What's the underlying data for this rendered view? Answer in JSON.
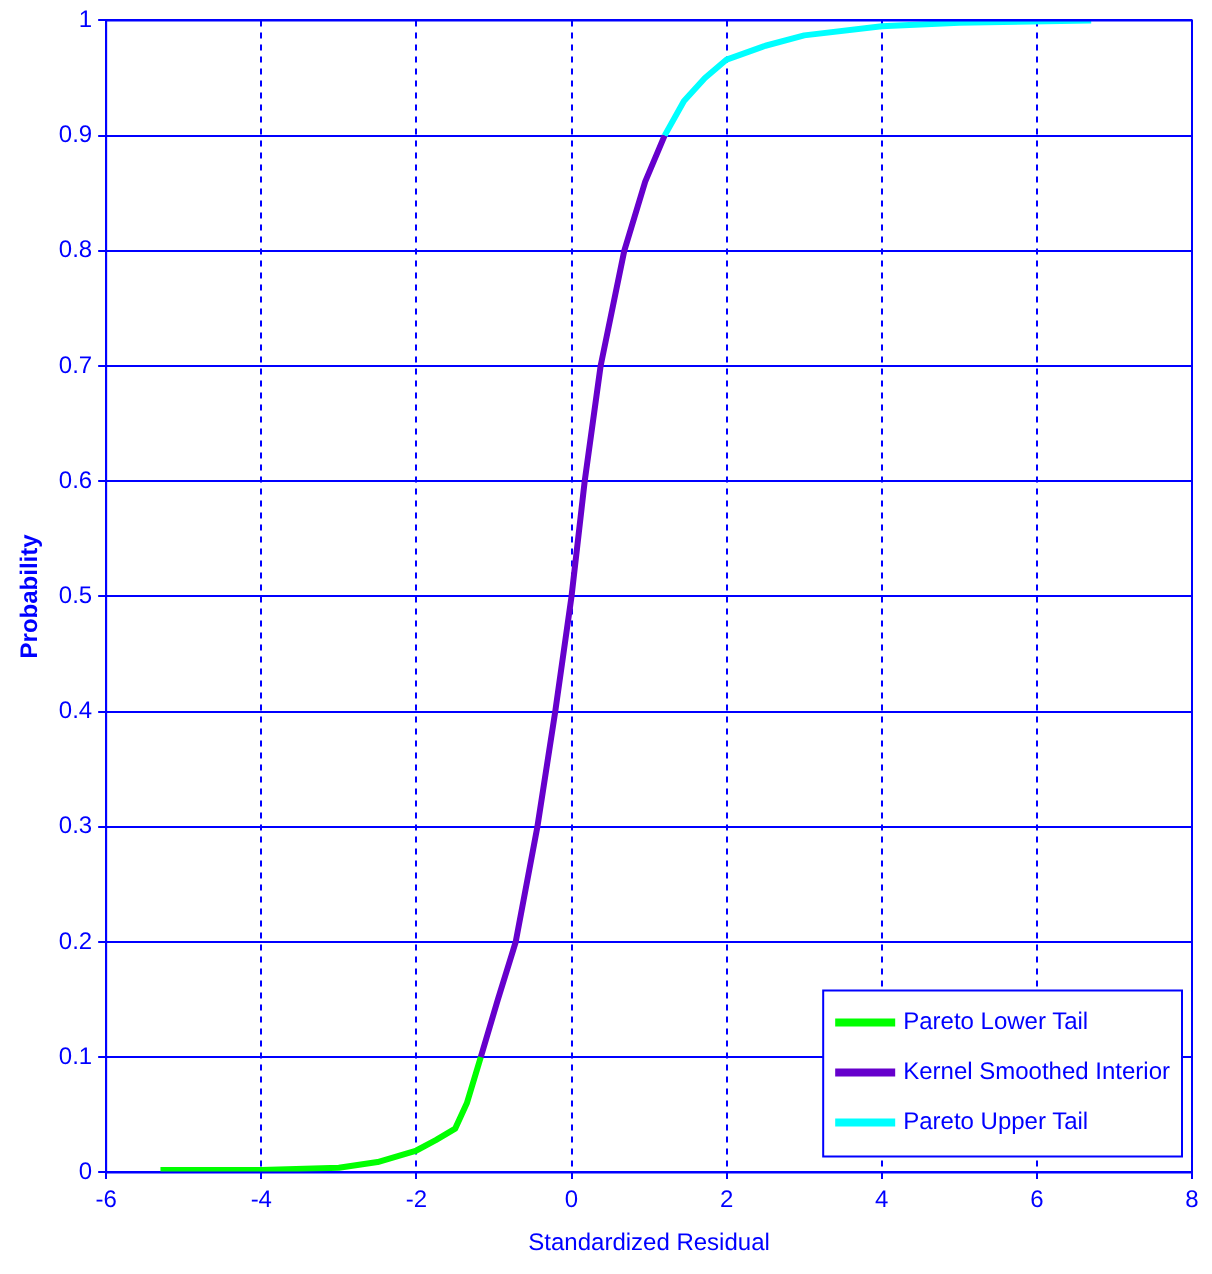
{
  "chart_data": {
    "type": "line",
    "xlabel": "Standardized Residual",
    "ylabel": "Probability",
    "xlim": [
      -6,
      8
    ],
    "xticks": [
      -6,
      -4,
      -2,
      0,
      2,
      4,
      6,
      8
    ],
    "ylim": [
      0,
      1
    ],
    "yticks": [
      0,
      0.1,
      0.2,
      0.3,
      0.4,
      0.5,
      0.6,
      0.7,
      0.8,
      0.9,
      1
    ],
    "grid": true,
    "legend": "bottom right",
    "marker": "none",
    "line_style": "solid",
    "series": [
      {
        "name": "Pareto Lower Tail",
        "color": "#00ff00",
        "x": [
          -5.3,
          -4,
          -3,
          -2.5,
          -2,
          -1.75,
          -1.5,
          -1.35,
          -1.17
        ],
        "values": [
          0.002,
          0.002,
          0.004,
          0.009,
          0.019,
          0.028,
          0.038,
          0.06,
          0.1
        ]
      },
      {
        "name": "Kernel Smoothed Interior",
        "color": "#6600cc",
        "x": [
          -1.17,
          -0.95,
          -0.72,
          -0.44,
          -0.21,
          0,
          0.17,
          0.375,
          0.68,
          0.95,
          1.2
        ],
        "values": [
          0.1,
          0.15,
          0.2,
          0.3,
          0.4,
          0.5,
          0.6,
          0.7,
          0.8,
          0.86,
          0.9
        ]
      },
      {
        "name": "Pareto Upper Tail",
        "color": "#00ffff",
        "x": [
          1.2,
          1.45,
          1.72,
          2,
          2.5,
          3,
          4,
          5,
          6.7
        ],
        "values": [
          0.9,
          0.93,
          0.95,
          0.966,
          0.978,
          0.987,
          0.995,
          0.998,
          1
        ]
      }
    ]
  }
}
